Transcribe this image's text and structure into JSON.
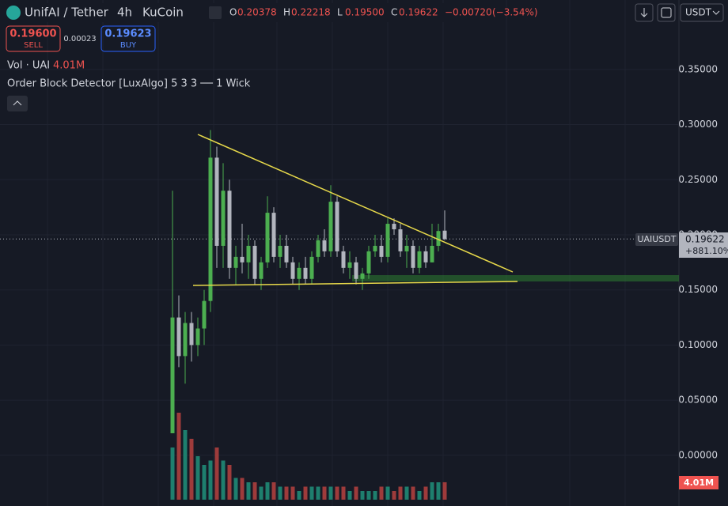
{
  "header": {
    "symbol": "UnifAI / Tether",
    "interval": "4h",
    "exchange": "KuCoin",
    "ohlc": [
      {
        "letter": "O",
        "value": "0.20378"
      },
      {
        "letter": "H",
        "value": "0.22218"
      },
      {
        "letter": "L",
        "value": "0.19500"
      },
      {
        "letter": "C",
        "value": "0.19622"
      }
    ],
    "change": "−0.00720",
    "change_pct": "(−3.54%)",
    "sell_price": "0.19600",
    "sell": "SELL",
    "spread": "0.00023",
    "buy_price": "0.19623",
    "buy": "BUY",
    "vol_label": "Vol · UAI",
    "vol_value": "4.01M",
    "indicator": "Order Block Detector [LuxAlgo] 5 3 3 ── 1 Wick",
    "currency": "USDT",
    "ticker": "UAIUSDT",
    "last_price": "0.19622",
    "last_change": "+881.10%",
    "vol_tag": "4.01M"
  },
  "chart_data": {
    "type": "candlestick",
    "ylim": [
      -0.046,
      0.413
    ],
    "yticks": [
      {
        "value": 0,
        "label": "0.00000"
      },
      {
        "value": 0.05,
        "label": "0.05000"
      },
      {
        "value": 0.1,
        "label": "0.10000"
      },
      {
        "value": 0.15,
        "label": "0.15000"
      },
      {
        "value": 0.2,
        "label": "0.20000"
      },
      {
        "value": 0.25,
        "label": "0.25000"
      },
      {
        "value": 0.3,
        "label": "0.30000"
      },
      {
        "value": 0.35,
        "label": "0.35000"
      }
    ],
    "up_color": "#4caf50",
    "down_color": "#b2b5be",
    "volume_up_color": "#1e7f6e",
    "volume_down_color": "#9e3b3b",
    "open": [
      0.02,
      0.125,
      0.09,
      0.12,
      0.1,
      0.115,
      0.14,
      0.27,
      0.19,
      0.24,
      0.17,
      0.18,
      0.175,
      0.19,
      0.16,
      0.175,
      0.22,
      0.18,
      0.19,
      0.175,
      0.16,
      0.17,
      0.16,
      0.18,
      0.195,
      0.185,
      0.23,
      0.185,
      0.17,
      0.175,
      0.16,
      0.165,
      0.185,
      0.19,
      0.18,
      0.21,
      0.205,
      0.185,
      0.19,
      0.17,
      0.185,
      0.175,
      0.19,
      0.20378
    ],
    "high": [
      0.24,
      0.145,
      0.13,
      0.13,
      0.125,
      0.15,
      0.295,
      0.28,
      0.265,
      0.25,
      0.19,
      0.21,
      0.2,
      0.195,
      0.18,
      0.235,
      0.225,
      0.2,
      0.2,
      0.18,
      0.175,
      0.18,
      0.185,
      0.2,
      0.205,
      0.245,
      0.235,
      0.19,
      0.185,
      0.18,
      0.17,
      0.19,
      0.2,
      0.2,
      0.215,
      0.215,
      0.21,
      0.2,
      0.195,
      0.19,
      0.19,
      0.21,
      0.21,
      0.22218
    ],
    "low": [
      0.02,
      0.08,
      0.065,
      0.085,
      0.09,
      0.1,
      0.13,
      0.17,
      0.17,
      0.16,
      0.155,
      0.165,
      0.16,
      0.155,
      0.15,
      0.17,
      0.175,
      0.17,
      0.17,
      0.155,
      0.15,
      0.155,
      0.155,
      0.175,
      0.18,
      0.18,
      0.18,
      0.165,
      0.16,
      0.155,
      0.15,
      0.16,
      0.18,
      0.175,
      0.175,
      0.2,
      0.18,
      0.17,
      0.165,
      0.165,
      0.17,
      0.175,
      0.185,
      0.195
    ],
    "close": [
      0.125,
      0.09,
      0.12,
      0.1,
      0.115,
      0.14,
      0.27,
      0.19,
      0.24,
      0.17,
      0.18,
      0.175,
      0.19,
      0.16,
      0.175,
      0.22,
      0.18,
      0.19,
      0.175,
      0.16,
      0.17,
      0.16,
      0.18,
      0.195,
      0.185,
      0.23,
      0.185,
      0.17,
      0.175,
      0.16,
      0.165,
      0.185,
      0.19,
      0.18,
      0.21,
      0.205,
      0.185,
      0.19,
      0.17,
      0.185,
      0.175,
      0.19,
      0.20342,
      0.19622
    ],
    "volume": [
      12,
      20,
      16,
      14,
      10,
      8,
      9,
      12,
      9,
      8,
      5,
      5,
      4,
      4,
      3,
      4,
      4,
      3,
      3,
      3,
      2,
      3,
      3,
      3,
      3,
      3,
      3,
      3,
      2,
      3,
      2,
      2,
      2,
      3,
      3,
      2,
      3,
      3,
      3,
      2,
      3,
      4,
      4,
      4.01
    ]
  }
}
